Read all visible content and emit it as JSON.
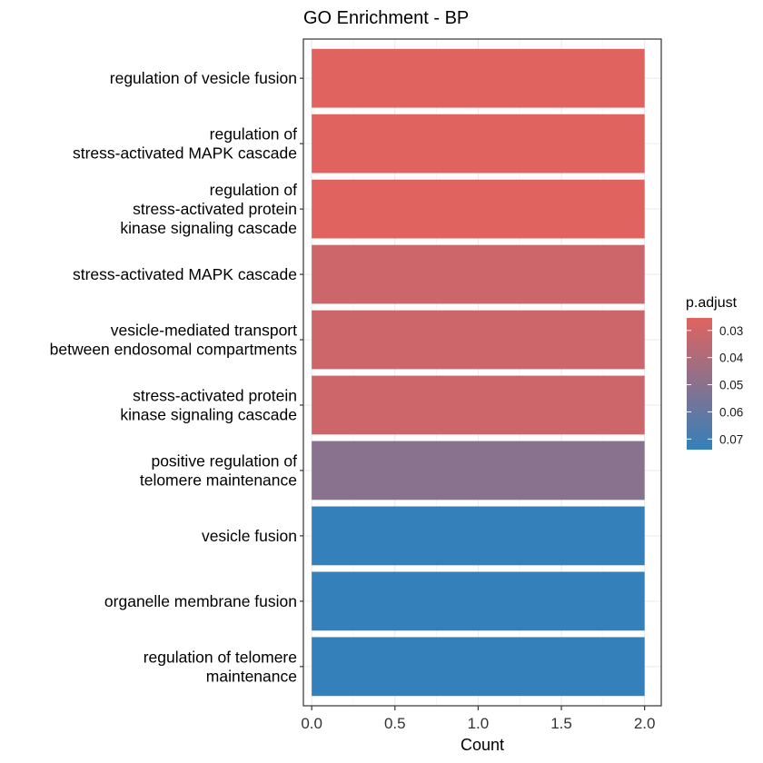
{
  "chart_data": {
    "type": "bar",
    "orientation": "horizontal",
    "title": "GO Enrichment - BP",
    "xlabel": "Count",
    "ylabel": "",
    "xlim": [
      -0.05,
      2.1
    ],
    "x_ticks": [
      "0.0",
      "0.5",
      "1.0",
      "1.5",
      "2.0"
    ],
    "grid": true,
    "categories": [
      "regulation of vesicle fusion",
      "regulation of\nstress-activated MAPK cascade",
      "regulation of\nstress-activated protein\nkinase signaling cascade",
      "stress-activated MAPK cascade",
      "vesicle-mediated transport\nbetween endosomal compartments",
      "stress-activated protein\nkinase signaling cascade",
      "positive regulation of\ntelomere maintenance",
      "vesicle fusion",
      "organelle membrane fusion",
      "regulation of telomere\nmaintenance"
    ],
    "values": [
      2,
      2,
      2,
      2,
      2,
      2,
      2,
      2,
      2,
      2
    ],
    "p_adjust": [
      0.0254,
      0.0254,
      0.0254,
      0.031,
      0.031,
      0.031,
      0.0502,
      0.0739,
      0.0739,
      0.0739
    ],
    "legend": {
      "title": "p.adjust",
      "placement": "right",
      "range": [
        0.0254,
        0.0739
      ],
      "labels": [
        "0.03",
        "0.04",
        "0.05",
        "0.06",
        "0.07"
      ],
      "label_values": [
        0.03,
        0.04,
        0.05,
        0.06,
        0.07
      ],
      "color_low": "#e0635f",
      "color_high": "#3480bb"
    }
  }
}
